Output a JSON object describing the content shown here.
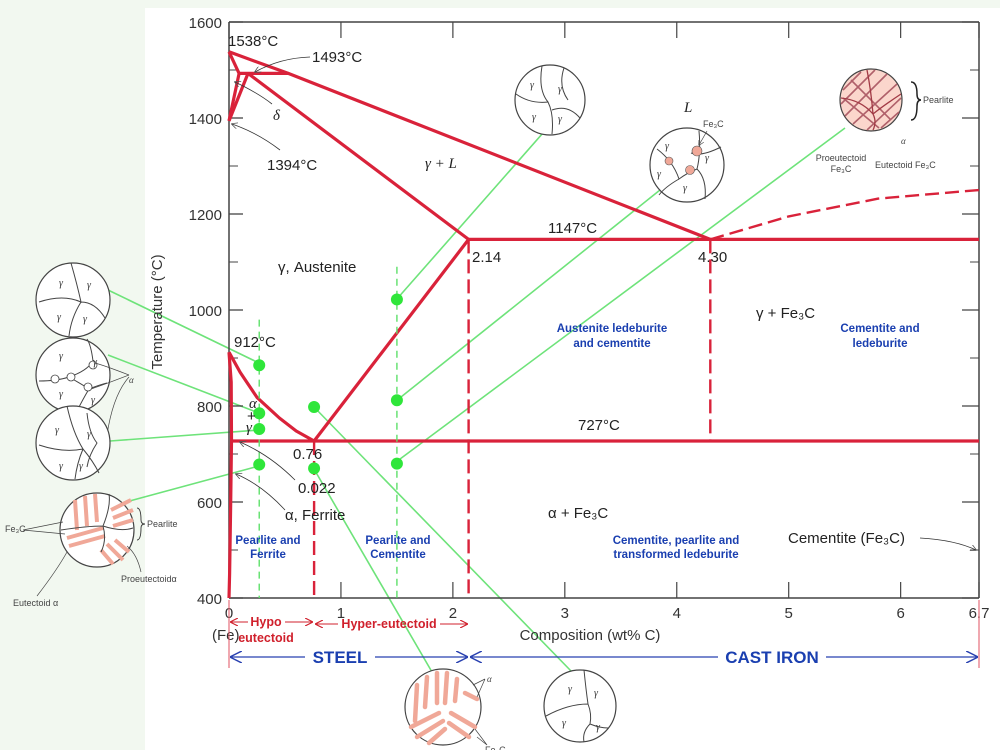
{
  "chart_data": {
    "type": "phase-diagram",
    "xlabel": "Composition (wt% C)",
    "ylabel": "Temperature (°C)",
    "xlim": [
      0,
      6.7
    ],
    "ylim": [
      400,
      1600
    ],
    "x_ticks": [
      "0",
      "1",
      "2",
      "3",
      "4",
      "5",
      "6",
      "6.7"
    ],
    "x_tick_values": [
      0,
      1,
      2,
      3,
      4,
      5,
      6,
      6.7
    ],
    "y_ticks": [
      "400",
      "600",
      "800",
      "1000",
      "1200",
      "1400",
      "1600"
    ],
    "y_tick_values": [
      400,
      600,
      800,
      1000,
      1200,
      1400,
      1600
    ],
    "phase_boundaries": [
      {
        "name": "liquidus",
        "style": "solid",
        "points": [
          [
            0,
            1538
          ],
          [
            0.53,
            1493
          ],
          [
            4.3,
            1147
          ]
        ]
      },
      {
        "name": "liquidus-cementite",
        "style": "dashed",
        "points": [
          [
            4.3,
            1147
          ],
          [
            5.0,
            1195
          ],
          [
            5.8,
            1232
          ],
          [
            6.7,
            1250
          ]
        ]
      },
      {
        "name": "delta-solidus",
        "style": "solid",
        "points": [
          [
            0,
            1538
          ],
          [
            0.09,
            1493
          ]
        ]
      },
      {
        "name": "delta-solvus",
        "style": "solid",
        "points": [
          [
            0.09,
            1493
          ],
          [
            0,
            1394
          ]
        ]
      },
      {
        "name": "peritectic",
        "style": "solid",
        "points": [
          [
            0.09,
            1493
          ],
          [
            0.53,
            1493
          ]
        ]
      },
      {
        "name": "gamma-delta",
        "style": "solid",
        "points": [
          [
            0.17,
            1493
          ],
          [
            0,
            1394
          ]
        ]
      },
      {
        "name": "austenite-solidus",
        "style": "solid",
        "points": [
          [
            0.17,
            1493
          ],
          [
            2.14,
            1147
          ]
        ]
      },
      {
        "name": "eutectic",
        "style": "solid",
        "points": [
          [
            2.14,
            1147
          ],
          [
            6.7,
            1147
          ]
        ]
      },
      {
        "name": "acm",
        "style": "solid",
        "points": [
          [
            2.14,
            1147
          ],
          [
            0.76,
            727
          ]
        ]
      },
      {
        "name": "a3",
        "style": "solid",
        "points": [
          [
            0,
            912
          ],
          [
            0.1,
            870
          ],
          [
            0.25,
            818
          ],
          [
            0.45,
            775
          ],
          [
            0.6,
            748
          ],
          [
            0.76,
            727
          ]
        ]
      },
      {
        "name": "eutectoid",
        "style": "solid",
        "points": [
          [
            0.022,
            727
          ],
          [
            6.7,
            727
          ]
        ]
      },
      {
        "name": "alpha-solvus",
        "style": "solid",
        "points": [
          [
            0,
            912
          ],
          [
            0.02,
            850
          ],
          [
            0.022,
            727
          ],
          [
            0.015,
            600
          ],
          [
            0.005,
            450
          ],
          [
            0,
            400
          ]
        ]
      },
      {
        "name": "ferrite-solvus-left",
        "style": "solid",
        "points": [
          [
            0.022,
            727
          ],
          [
            0.022,
            727
          ]
        ]
      },
      {
        "name": "eutectoid-composition",
        "style": "dashed",
        "points": [
          [
            0.76,
            727
          ],
          [
            0.76,
            400
          ]
        ]
      },
      {
        "name": "steel-castiron-limit",
        "style": "dashed",
        "points": [
          [
            2.14,
            1147
          ],
          [
            2.14,
            400
          ]
        ]
      },
      {
        "name": "eutectic-composition",
        "style": "dashed",
        "points": [
          [
            4.3,
            1147
          ],
          [
            4.3,
            727
          ]
        ]
      }
    ],
    "composition_guides": [
      {
        "x": 0.27,
        "from": 400,
        "to": 980
      },
      {
        "x": 1.5,
        "from": 400,
        "to": 1090
      }
    ],
    "sample_points": [
      [
        0.27,
        885
      ],
      [
        0.27,
        785
      ],
      [
        0.27,
        752
      ],
      [
        0.27,
        678
      ],
      [
        0.76,
        798
      ],
      [
        0.76,
        670
      ],
      [
        1.5,
        1022
      ],
      [
        1.5,
        812
      ],
      [
        1.5,
        680
      ]
    ],
    "annotations": {
      "t1538": "1538°C",
      "t1493": "1493°C",
      "delta": "δ",
      "t1394": "1394°C",
      "gamma_l": "γ + L",
      "l": "L",
      "t1147": "1147°C",
      "c214": "2.14",
      "c430": "4.30",
      "austenite": "γ, Austenite",
      "t912": "912°C",
      "alpha": "α",
      "plus": "+",
      "gamma": "γ",
      "c076": "0.76",
      "c0022": "0.022",
      "ferrite": "α, Ferrite",
      "t727": "727°C",
      "gamma_fe3c": "γ + Fe₃C",
      "alpha_fe3c": "α + Fe₃C",
      "cementite": "Cementite (Fe₃C)",
      "fe": "(Fe)"
    },
    "region_labels": {
      "pearlite_ferrite": [
        "Pearlite and",
        "Ferrite"
      ],
      "pearlite_cementite": [
        "Pearlite and",
        "Cementite"
      ],
      "austenite_ledeburite": [
        "Austenite ledeburite",
        "and cementite"
      ],
      "cementite_ledeburite": [
        "Cementite and",
        "ledeburite"
      ],
      "cementite_pearlite": [
        "Cementite, pearlite and",
        "transformed ledeburite"
      ]
    },
    "ranges": {
      "hypo": [
        "Hypo",
        "eutectoid"
      ],
      "hyper": "Hyper-eutectoid",
      "steel": "STEEL",
      "cast_iron": "CAST IRON"
    }
  },
  "micro_labels": {
    "gamma": "γ",
    "alpha": "α",
    "fe3c": "Fe₃C",
    "pearlite": "Pearlite",
    "proeutectoid_fe3c": [
      "Proeutectoid",
      "Fe₃C"
    ],
    "eutectoid_fe3c": "Eutectoid Fe₃C",
    "proeutectoid_alpha": "Proeutectoidα",
    "eutectoid_alpha": "Eutectoid  α"
  },
  "colors": {
    "phase_line": "#d9223a",
    "guide": "#5ee06a",
    "point": "#2fe63a",
    "region_text": "#1a3fb0",
    "range_text": "#d0202c",
    "pearlite_fill": "#f0a898"
  }
}
